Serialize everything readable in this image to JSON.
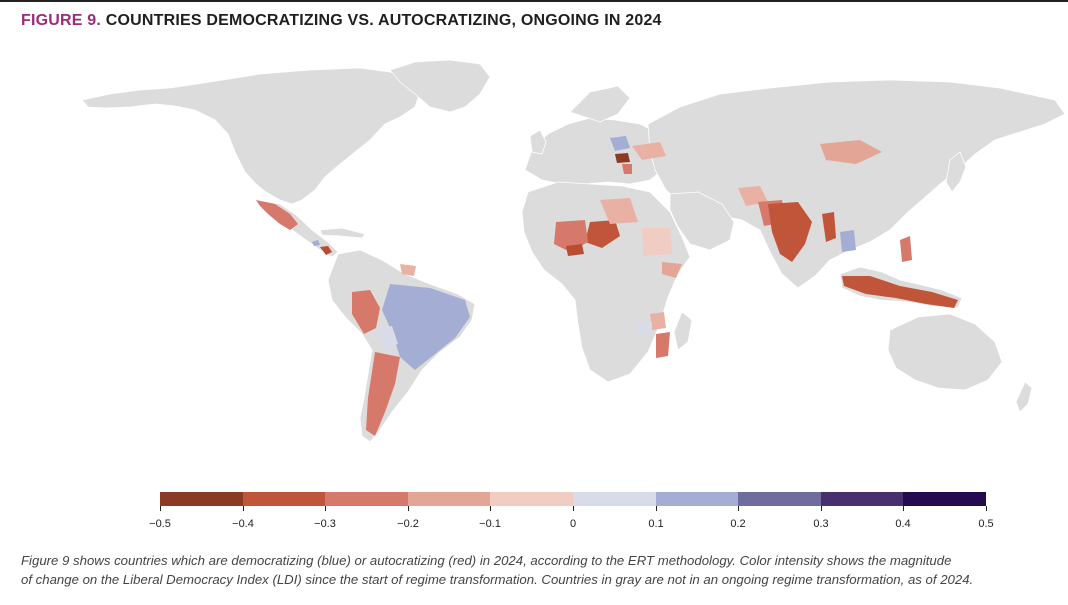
{
  "header": {
    "figure_number": "FIGURE 9.",
    "title": "COUNTRIES DEMOCRATIZING VS. AUTOCRATIZING, ONGOING IN 2024"
  },
  "legend": {
    "ticks": [
      "−0.5",
      "−0.4",
      "−0.3",
      "−0.2",
      "−0.1",
      "0",
      "0.1",
      "0.2",
      "0.3",
      "0.4",
      "0.5"
    ],
    "colors": [
      "#8b3a24",
      "#c0553a",
      "#d6796a",
      "#e3a596",
      "#f0ccc2",
      "#d8dbe8",
      "#a4add3",
      "#706d9e",
      "#48306e",
      "#220c4f"
    ]
  },
  "map_colors": {
    "land": "#dcdcdc",
    "red_dark": "#b84d31",
    "red_mid": "#d6796a",
    "red_light": "#e8b1a3",
    "blue_light": "#a4add3"
  },
  "caption": {
    "line1": "Figure 9 shows countries which are democratizing (blue) or autocratizing (red) in 2024, according to the ERT methodology. Color intensity shows the magnitude",
    "line2": "of change on the Liberal Democracy Index (LDI) since the start of regime transformation. Countries in gray are not in an ongoing regime transformation, as of 2024."
  }
}
